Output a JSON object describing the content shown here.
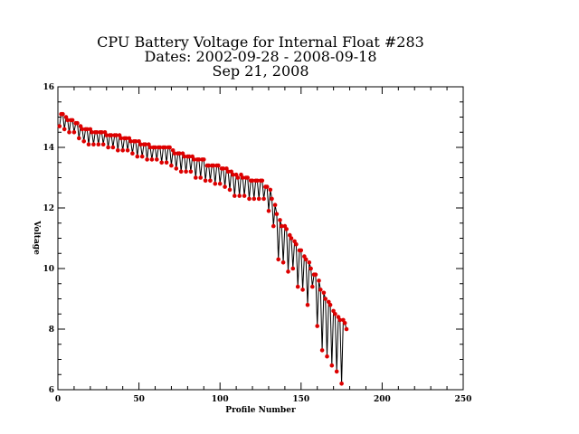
{
  "chart_data": {
    "type": "line",
    "title_lines": [
      "CPU Battery Voltage for Internal Float #283",
      "Dates:  2002-09-28 -  2008-09-18",
      "Sep 21, 2008"
    ],
    "xlabel": "Profile Number",
    "ylabel": "Voltage",
    "xlim": [
      0,
      250
    ],
    "ylim": [
      6,
      16
    ],
    "xticks": [
      0,
      50,
      100,
      150,
      200,
      250
    ],
    "yticks": [
      6,
      8,
      10,
      12,
      14,
      16
    ],
    "grid": false,
    "line_color": "#000000",
    "marker_color": "#dd0000",
    "series": [
      {
        "values": [
          [
            1,
            14.7
          ],
          [
            2,
            15.1
          ],
          [
            3,
            15.1
          ],
          [
            4,
            14.6
          ],
          [
            5,
            15.0
          ],
          [
            6,
            14.9
          ],
          [
            7,
            14.5
          ],
          [
            8,
            14.9
          ],
          [
            9,
            14.9
          ],
          [
            10,
            14.5
          ],
          [
            11,
            14.8
          ],
          [
            12,
            14.8
          ],
          [
            13,
            14.3
          ],
          [
            14,
            14.7
          ],
          [
            15,
            14.6
          ],
          [
            16,
            14.2
          ],
          [
            17,
            14.6
          ],
          [
            18,
            14.6
          ],
          [
            19,
            14.1
          ],
          [
            20,
            14.6
          ],
          [
            21,
            14.5
          ],
          [
            22,
            14.1
          ],
          [
            23,
            14.5
          ],
          [
            24,
            14.5
          ],
          [
            25,
            14.1
          ],
          [
            26,
            14.5
          ],
          [
            27,
            14.5
          ],
          [
            28,
            14.1
          ],
          [
            29,
            14.5
          ],
          [
            30,
            14.4
          ],
          [
            31,
            14.0
          ],
          [
            32,
            14.4
          ],
          [
            33,
            14.4
          ],
          [
            34,
            14.0
          ],
          [
            35,
            14.4
          ],
          [
            36,
            14.4
          ],
          [
            37,
            13.9
          ],
          [
            38,
            14.4
          ],
          [
            39,
            14.3
          ],
          [
            40,
            13.9
          ],
          [
            41,
            14.3
          ],
          [
            42,
            14.3
          ],
          [
            43,
            13.9
          ],
          [
            44,
            14.3
          ],
          [
            45,
            14.2
          ],
          [
            46,
            13.8
          ],
          [
            47,
            14.2
          ],
          [
            48,
            14.2
          ],
          [
            49,
            13.7
          ],
          [
            50,
            14.2
          ],
          [
            51,
            14.1
          ],
          [
            52,
            13.7
          ],
          [
            53,
            14.1
          ],
          [
            54,
            14.1
          ],
          [
            55,
            13.6
          ],
          [
            56,
            14.1
          ],
          [
            57,
            14.0
          ],
          [
            58,
            13.6
          ],
          [
            59,
            14.0
          ],
          [
            60,
            14.0
          ],
          [
            61,
            13.6
          ],
          [
            62,
            14.0
          ],
          [
            63,
            14.0
          ],
          [
            64,
            13.5
          ],
          [
            65,
            14.0
          ],
          [
            66,
            14.0
          ],
          [
            67,
            13.5
          ],
          [
            68,
            14.0
          ],
          [
            69,
            14.0
          ],
          [
            70,
            13.4
          ],
          [
            71,
            13.9
          ],
          [
            72,
            13.8
          ],
          [
            73,
            13.3
          ],
          [
            74,
            13.8
          ],
          [
            75,
            13.8
          ],
          [
            76,
            13.2
          ],
          [
            77,
            13.8
          ],
          [
            78,
            13.7
          ],
          [
            79,
            13.2
          ],
          [
            80,
            13.7
          ],
          [
            81,
            13.7
          ],
          [
            82,
            13.2
          ],
          [
            83,
            13.7
          ],
          [
            84,
            13.6
          ],
          [
            85,
            13.0
          ],
          [
            86,
            13.6
          ],
          [
            87,
            13.6
          ],
          [
            88,
            13.0
          ],
          [
            89,
            13.6
          ],
          [
            90,
            13.6
          ],
          [
            91,
            12.9
          ],
          [
            92,
            13.4
          ],
          [
            93,
            13.4
          ],
          [
            94,
            12.9
          ],
          [
            95,
            13.4
          ],
          [
            96,
            13.4
          ],
          [
            97,
            12.8
          ],
          [
            98,
            13.4
          ],
          [
            99,
            13.4
          ],
          [
            100,
            12.8
          ],
          [
            101,
            13.3
          ],
          [
            102,
            13.3
          ],
          [
            103,
            12.7
          ],
          [
            104,
            13.3
          ],
          [
            105,
            13.2
          ],
          [
            106,
            12.6
          ],
          [
            107,
            13.2
          ],
          [
            108,
            13.1
          ],
          [
            109,
            12.4
          ],
          [
            110,
            13.1
          ],
          [
            111,
            13.0
          ],
          [
            112,
            12.4
          ],
          [
            113,
            13.1
          ],
          [
            114,
            13.0
          ],
          [
            115,
            12.4
          ],
          [
            116,
            13.0
          ],
          [
            117,
            13.0
          ],
          [
            118,
            12.3
          ],
          [
            119,
            12.9
          ],
          [
            120,
            12.9
          ],
          [
            121,
            12.3
          ],
          [
            122,
            12.9
          ],
          [
            123,
            12.9
          ],
          [
            124,
            12.3
          ],
          [
            125,
            12.9
          ],
          [
            126,
            12.9
          ],
          [
            127,
            12.3
          ],
          [
            128,
            12.7
          ],
          [
            129,
            12.7
          ],
          [
            130,
            11.9
          ],
          [
            131,
            12.6
          ],
          [
            132,
            12.3
          ],
          [
            133,
            11.4
          ],
          [
            134,
            12.1
          ],
          [
            135,
            11.8
          ],
          [
            136,
            10.3
          ],
          [
            137,
            11.6
          ],
          [
            138,
            11.4
          ],
          [
            139,
            10.2
          ],
          [
            140,
            11.4
          ],
          [
            141,
            11.3
          ],
          [
            142,
            9.9
          ],
          [
            143,
            11.1
          ],
          [
            144,
            11.0
          ],
          [
            145,
            10.0
          ],
          [
            146,
            10.9
          ],
          [
            147,
            10.8
          ],
          [
            148,
            9.4
          ],
          [
            149,
            10.6
          ],
          [
            150,
            10.6
          ],
          [
            151,
            9.3
          ],
          [
            152,
            10.4
          ],
          [
            153,
            10.3
          ],
          [
            154,
            8.8
          ],
          [
            155,
            10.2
          ],
          [
            156,
            10.0
          ],
          [
            157,
            9.4
          ],
          [
            158,
            9.8
          ],
          [
            159,
            9.8
          ],
          [
            160,
            8.1
          ],
          [
            161,
            9.6
          ],
          [
            162,
            9.3
          ],
          [
            163,
            7.3
          ],
          [
            164,
            9.2
          ],
          [
            165,
            9.0
          ],
          [
            166,
            7.1
          ],
          [
            167,
            8.9
          ],
          [
            168,
            8.8
          ],
          [
            169,
            6.8
          ],
          [
            170,
            8.6
          ],
          [
            171,
            8.5
          ],
          [
            172,
            6.6
          ],
          [
            173,
            8.4
          ],
          [
            174,
            8.3
          ],
          [
            175,
            6.2
          ],
          [
            176,
            8.3
          ],
          [
            177,
            8.2
          ],
          [
            178,
            8.0
          ]
        ]
      }
    ]
  }
}
